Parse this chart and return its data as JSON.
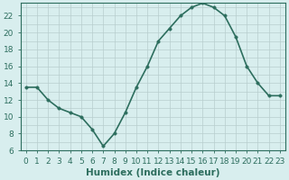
{
  "x": [
    0,
    1,
    2,
    3,
    4,
    5,
    6,
    7,
    8,
    9,
    10,
    11,
    12,
    13,
    14,
    15,
    16,
    17,
    18,
    19,
    20,
    21,
    22,
    23
  ],
  "y": [
    13.5,
    13.5,
    12.0,
    11.0,
    10.5,
    10.0,
    8.5,
    6.5,
    8.0,
    10.5,
    13.5,
    16.0,
    19.0,
    20.5,
    22.0,
    23.0,
    23.5,
    23.0,
    22.0,
    19.5,
    16.0,
    14.0,
    12.5,
    12.5
  ],
  "xlabel": "Humidex (Indice chaleur)",
  "line_color": "#2d6e5e",
  "marker_size": 2.5,
  "marker_color": "#2d6e5e",
  "bg_color": "#d8eeee",
  "grid_color": "#b8cece",
  "ylim_min": 6,
  "ylim_max": 23,
  "xlim_min": -0.5,
  "xlim_max": 23.5,
  "yticks": [
    6,
    8,
    10,
    12,
    14,
    16,
    18,
    20,
    22
  ],
  "xticks": [
    0,
    1,
    2,
    3,
    4,
    5,
    6,
    7,
    8,
    9,
    10,
    11,
    12,
    13,
    14,
    15,
    16,
    17,
    18,
    19,
    20,
    21,
    22,
    23
  ],
  "xtick_labels": [
    "0",
    "1",
    "2",
    "3",
    "4",
    "5",
    "6",
    "7",
    "8",
    "9",
    "10",
    "11",
    "12",
    "13",
    "14",
    "15",
    "16",
    "17",
    "18",
    "19",
    "20",
    "21",
    "22",
    "23"
  ],
  "tick_color": "#2d6e5e",
  "axis_color": "#2d6e5e",
  "xlabel_fontsize": 7.5,
  "tick_fontsize": 6.5,
  "line_width": 1.2
}
